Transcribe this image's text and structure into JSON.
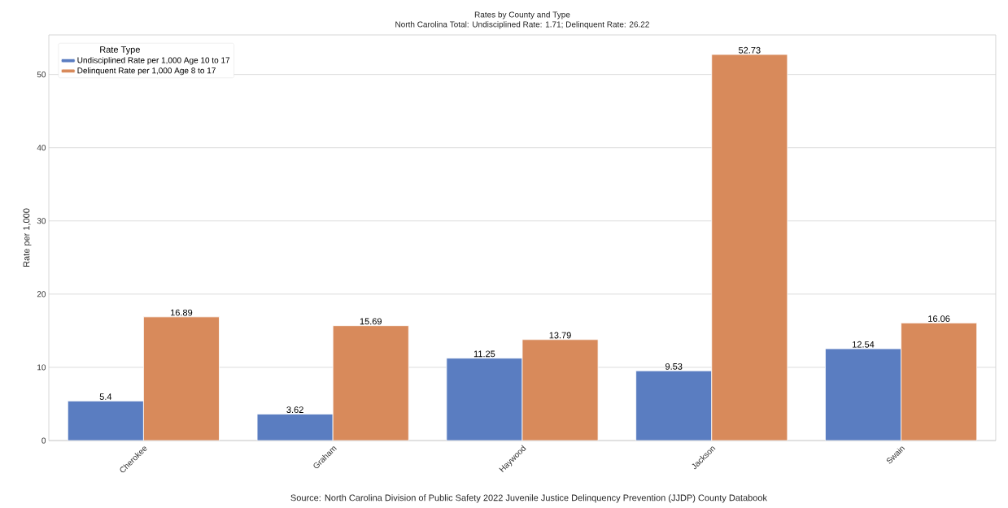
{
  "chart_data": {
    "type": "bar",
    "title": "Rates by County and Type",
    "subtitle": "North Carolina Total: Undisciplined Rate: 1.71; Delinquent Rate: 26.22",
    "xlabel": null,
    "ylabel": "Rate per 1,000",
    "legend_title": "Rate Type",
    "annotations": [
      "Source: North Carolina Division of Public Safety 2022 Juvenile Justice Delinquency Prevention (JJDP) County Databook"
    ],
    "categories": [
      "Cherokee",
      "Graham",
      "Haywood",
      "Jackson",
      "Swain"
    ],
    "series": [
      {
        "name": "Undisciplined Rate per 1,000 Age 10 to 17",
        "color": "#5a7dc1",
        "values": [
          5.4,
          3.62,
          11.25,
          9.53,
          12.54
        ]
      },
      {
        "name": "Delinquent Rate per 1,000 Age 8 to 17",
        "color": "#d88a5b",
        "values": [
          16.89,
          15.69,
          13.79,
          52.73,
          16.06
        ]
      }
    ],
    "ylim": [
      0,
      55.4
    ],
    "yticks": [
      0,
      10,
      20,
      30,
      40,
      50
    ],
    "grid": "y",
    "legend": "top left",
    "data_labels": true
  }
}
